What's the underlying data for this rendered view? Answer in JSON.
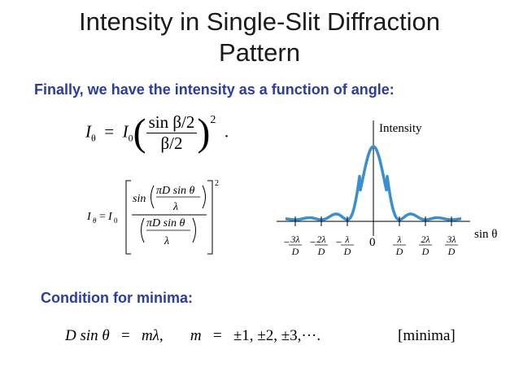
{
  "slide": {
    "title_line1": "Intensity in Single-Slit Diffraction",
    "title_line2": "Pattern",
    "subtitle": "Finally, we have the intensity as a function of angle:",
    "condition_heading": "Condition for minima:"
  },
  "equation1": {
    "lhs": "I",
    "lhs_sub": "θ",
    "eq": "=",
    "i0": "I",
    "i0_sub": "0",
    "numerator": "sin β/2",
    "denominator": "β/2",
    "power": "2",
    "period": "."
  },
  "equation2": {
    "lhs": "I",
    "lhs_sub": "θ",
    "eq": "=",
    "i0": "I",
    "i0_sub": "0",
    "sin_word": "sin",
    "inner_num": "πD sin θ",
    "inner_den": "λ",
    "outer_den_num": "πD sin θ",
    "outer_den_den": "λ",
    "power": "2"
  },
  "minima": {
    "lhs": "D sin θ",
    "eq1": "=",
    "rhs": "mλ,",
    "m": "m",
    "eq2": "=",
    "values": "±1, ±2, ±3,···.",
    "tag": "[minima]"
  },
  "plot": {
    "ylabel": "Intensity",
    "xlabel": "sin θ",
    "origin_label": "0",
    "ticks": [
      {
        "sign": "−",
        "num": "3λ",
        "den": "D",
        "m": -3
      },
      {
        "sign": "−",
        "num": "2λ",
        "den": "D",
        "m": -2
      },
      {
        "sign": "−",
        "num": "λ",
        "den": "D",
        "m": -1
      },
      {
        "sign": "",
        "num": "λ",
        "den": "D",
        "m": 1
      },
      {
        "sign": "",
        "num": "2λ",
        "den": "D",
        "m": 2
      },
      {
        "sign": "",
        "num": "3λ",
        "den": "D",
        "m": 3
      }
    ],
    "curve_color": "#3a8fd0"
  }
}
